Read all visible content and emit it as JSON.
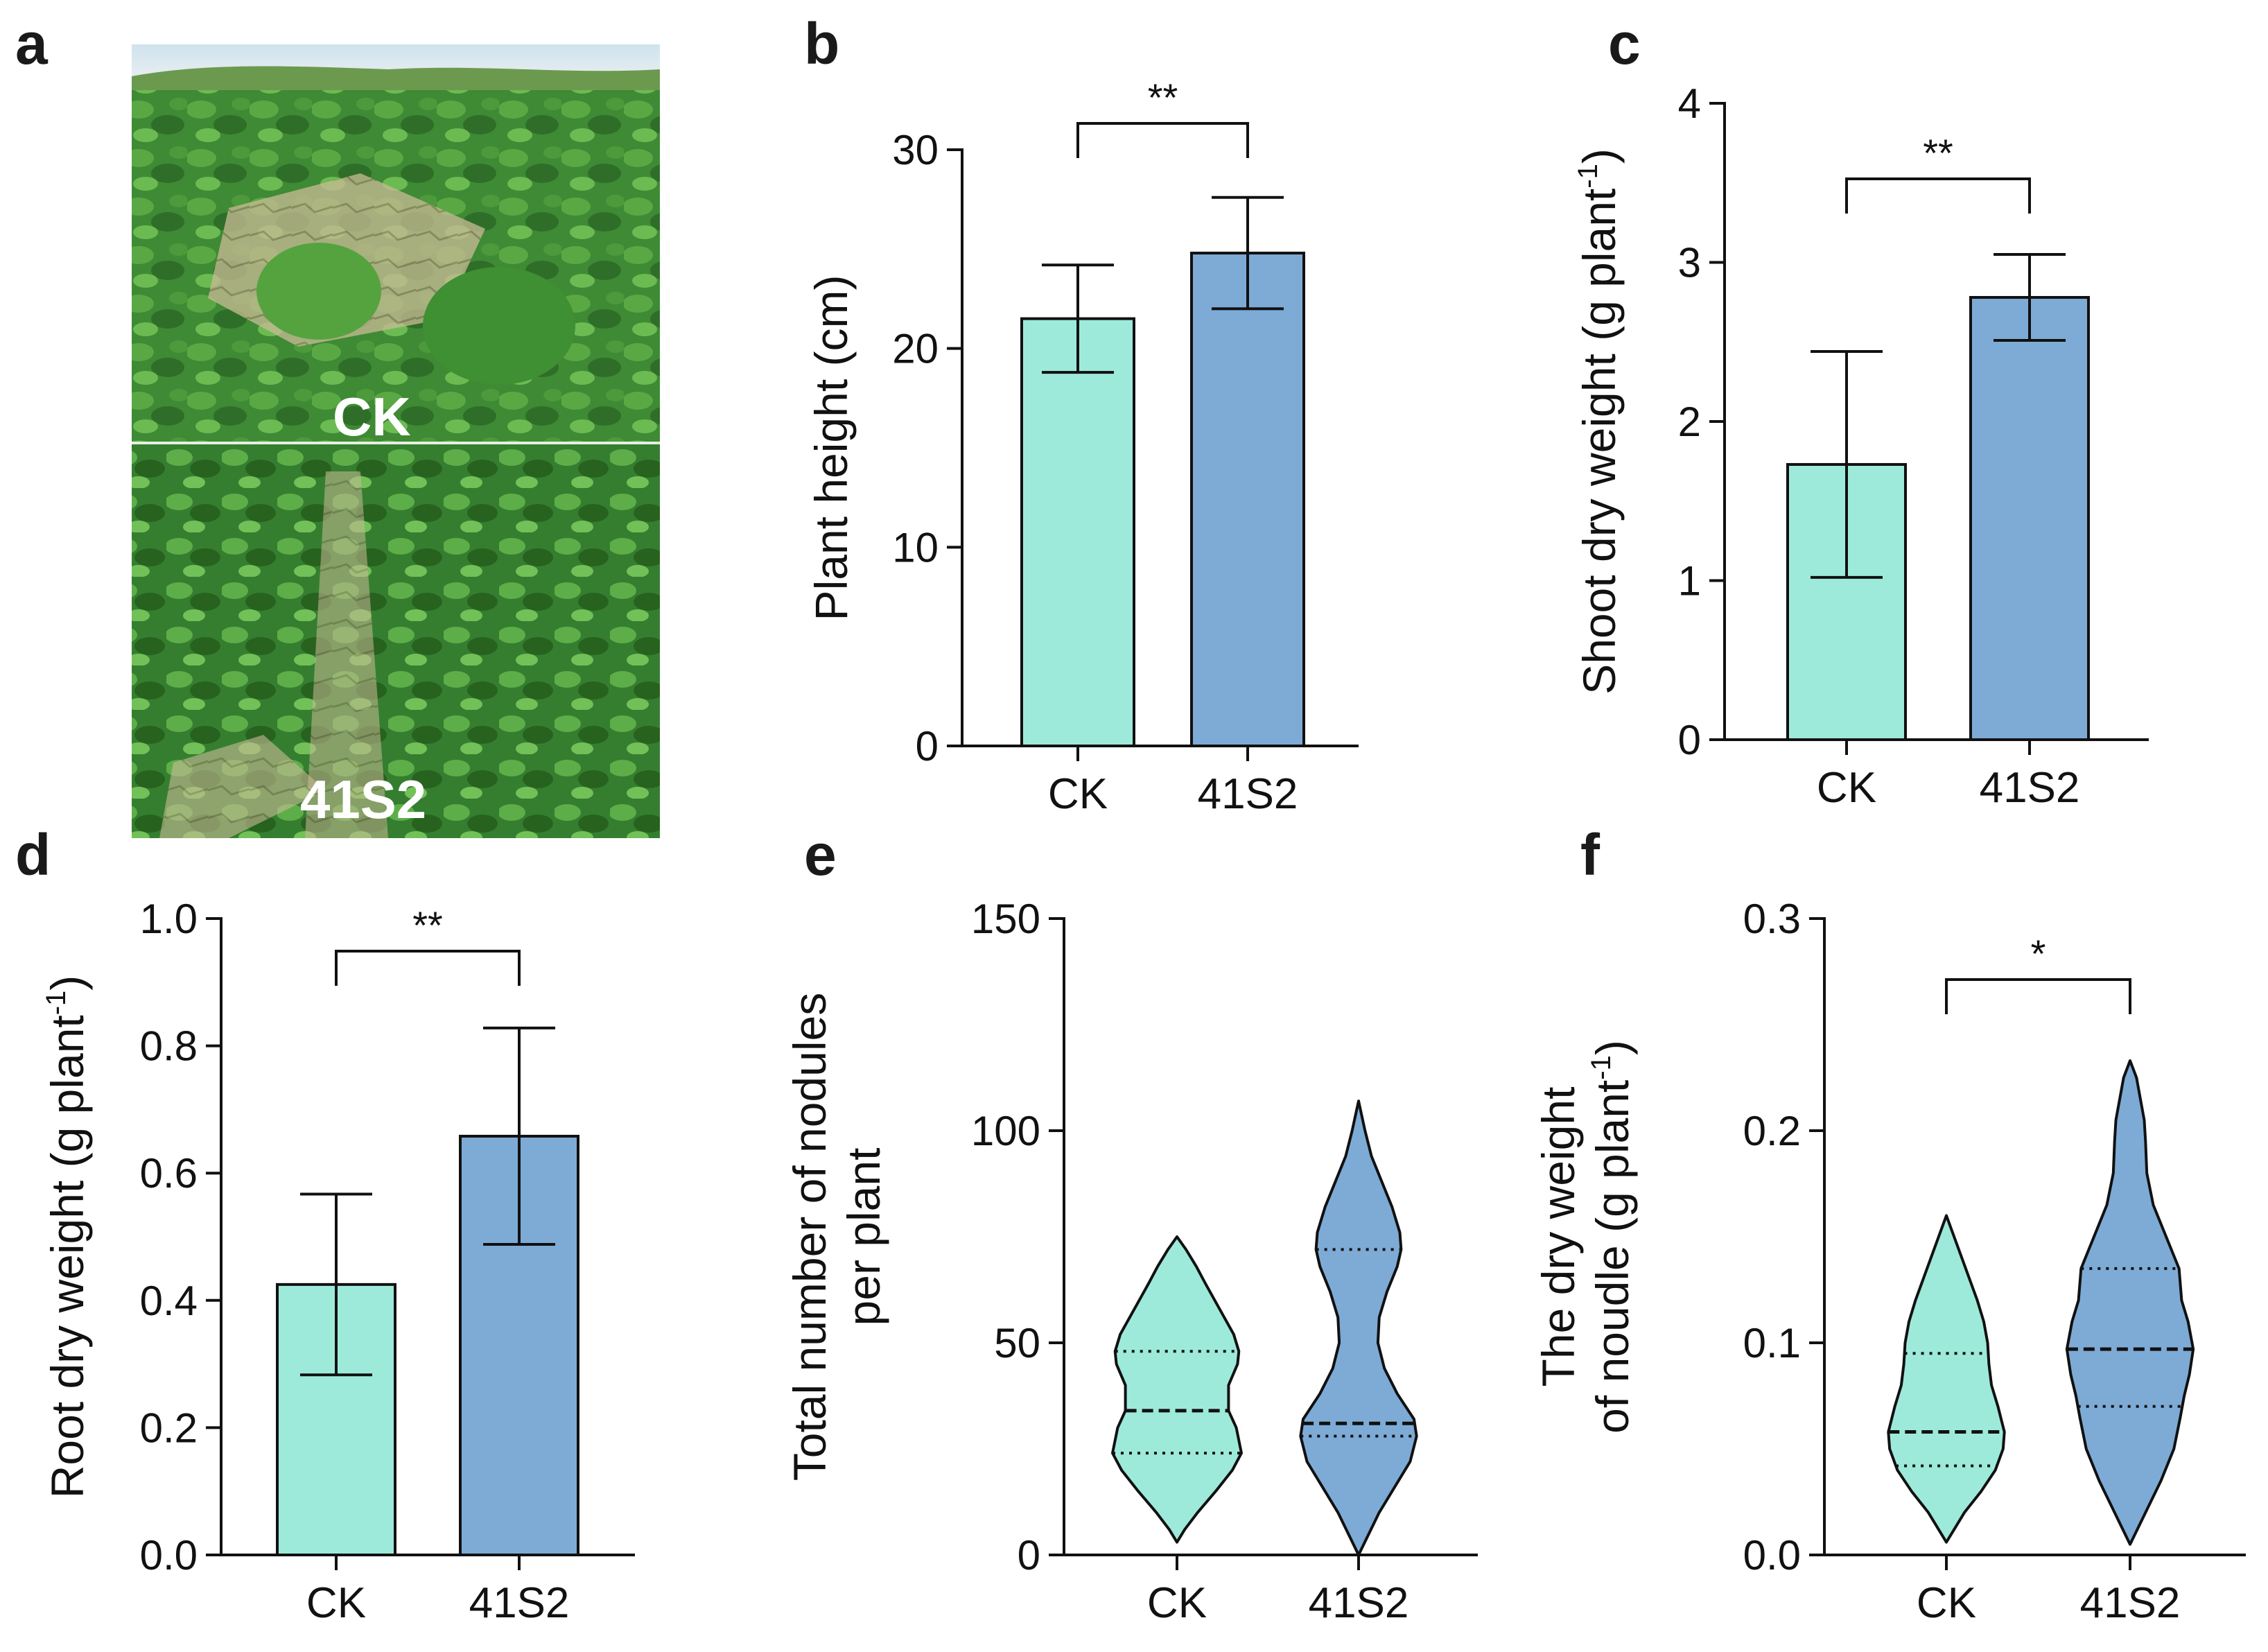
{
  "colors": {
    "CK": "#9deadb",
    "41S2": "#7dabd6",
    "stroke": "#111111"
  },
  "panels": {
    "a": {
      "label": "a",
      "photo_labels": [
        "CK",
        "41S2"
      ]
    },
    "b": {
      "label": "b"
    },
    "c": {
      "label": "c"
    },
    "d": {
      "label": "d"
    },
    "e": {
      "label": "e"
    },
    "f": {
      "label": "f"
    }
  },
  "chart_data": [
    {
      "panel": "b",
      "type": "bar",
      "categories": [
        "CK",
        "41S2"
      ],
      "values": [
        21.5,
        24.8
      ],
      "errors": [
        2.7,
        2.8
      ],
      "ylabel": "Plant height (cm)",
      "ylim": [
        0,
        30
      ],
      "yticks": [
        "0",
        "10",
        "20",
        "30"
      ],
      "significance": "**"
    },
    {
      "panel": "c",
      "type": "bar",
      "categories": [
        "CK",
        "41S2"
      ],
      "values": [
        1.73,
        2.78
      ],
      "errors": [
        0.71,
        0.27
      ],
      "ylabel": "Shoot dry weight (g plant",
      "ylabel_sup": "-1",
      "ylabel_end": ")",
      "ylim": [
        0,
        4
      ],
      "yticks": [
        "0",
        "1",
        "2",
        "3",
        "4"
      ],
      "significance": "**"
    },
    {
      "panel": "d",
      "type": "bar",
      "categories": [
        "CK",
        "41S2"
      ],
      "values": [
        0.425,
        0.658
      ],
      "errors": [
        0.142,
        0.17
      ],
      "ylabel": "Root dry weight (g plant",
      "ylabel_sup": "-1",
      "ylabel_end": ")",
      "ylim": [
        0,
        1
      ],
      "yticks": [
        "0.0",
        "0.2",
        "0.4",
        "0.6",
        "0.8",
        "1.0"
      ],
      "significance": "**"
    },
    {
      "panel": "e",
      "type": "violin",
      "categories": [
        "CK",
        "41S2"
      ],
      "ylabel_lines": [
        "Total number of nodules",
        "per plant"
      ],
      "ylim": [
        0,
        150
      ],
      "yticks": [
        "0",
        "50",
        "100",
        "150"
      ],
      "violins": [
        {
          "name": "CK",
          "median": 34,
          "q1": 24,
          "q3": 48,
          "profile": [
            [
              3,
              0
            ],
            [
              6,
              6
            ],
            [
              10,
              16
            ],
            [
              15,
              30
            ],
            [
              20,
              43
            ],
            [
              24,
              50
            ],
            [
              30,
              46
            ],
            [
              34,
              40
            ],
            [
              40,
              40
            ],
            [
              45,
              47
            ],
            [
              48,
              48
            ],
            [
              52,
              44
            ],
            [
              58,
              33
            ],
            [
              64,
              22
            ],
            [
              68,
              15
            ],
            [
              72,
              7
            ],
            [
              75,
              0
            ]
          ]
        },
        {
          "name": "41S2",
          "median": 31,
          "q1": 28,
          "q3": 72,
          "profile": [
            [
              0,
              0
            ],
            [
              5,
              8
            ],
            [
              10,
              16
            ],
            [
              16,
              28
            ],
            [
              22,
              40
            ],
            [
              28,
              45
            ],
            [
              32,
              43
            ],
            [
              38,
              30
            ],
            [
              44,
              20
            ],
            [
              50,
              15
            ],
            [
              56,
              16
            ],
            [
              62,
              22
            ],
            [
              68,
              30
            ],
            [
              72,
              33
            ],
            [
              76,
              32
            ],
            [
              82,
              26
            ],
            [
              88,
              18
            ],
            [
              94,
              10
            ],
            [
              100,
              5
            ],
            [
              107,
              0
            ]
          ]
        }
      ]
    },
    {
      "panel": "f",
      "type": "violin",
      "categories": [
        "CK",
        "41S2"
      ],
      "ylabel_lines": [
        "The dry weight",
        "of noudle (g plant"
      ],
      "ylabel_sup": "-1",
      "ylabel_end": ")",
      "ylim": [
        0,
        0.3
      ],
      "yticks": [
        "0.0",
        "0.1",
        "0.2",
        "0.3"
      ],
      "significance": "*",
      "violins": [
        {
          "name": "CK",
          "median": 0.058,
          "q1": 0.042,
          "q3": 0.095,
          "profile": [
            [
              0.006,
              0
            ],
            [
              0.012,
              6
            ],
            [
              0.02,
              14
            ],
            [
              0.03,
              27
            ],
            [
              0.04,
              38
            ],
            [
              0.05,
              44
            ],
            [
              0.058,
              45
            ],
            [
              0.07,
              40
            ],
            [
              0.08,
              35
            ],
            [
              0.09,
              33
            ],
            [
              0.1,
              32
            ],
            [
              0.11,
              29
            ],
            [
              0.12,
              24
            ],
            [
              0.13,
              18
            ],
            [
              0.14,
              12
            ],
            [
              0.15,
              6
            ],
            [
              0.16,
              0
            ]
          ]
        },
        {
          "name": "41S2",
          "median": 0.097,
          "q1": 0.07,
          "q3": 0.135,
          "profile": [
            [
              0.005,
              0
            ],
            [
              0.015,
              8
            ],
            [
              0.025,
              16
            ],
            [
              0.035,
              24
            ],
            [
              0.05,
              34
            ],
            [
              0.065,
              39
            ],
            [
              0.075,
              42
            ],
            [
              0.085,
              46
            ],
            [
              0.097,
              49
            ],
            [
              0.11,
              45
            ],
            [
              0.12,
              40
            ],
            [
              0.135,
              38
            ],
            [
              0.15,
              28
            ],
            [
              0.165,
              18
            ],
            [
              0.18,
              13
            ],
            [
              0.195,
              12
            ],
            [
              0.205,
              11
            ],
            [
              0.215,
              8
            ],
            [
              0.225,
              5
            ],
            [
              0.233,
              0
            ]
          ]
        }
      ]
    }
  ]
}
